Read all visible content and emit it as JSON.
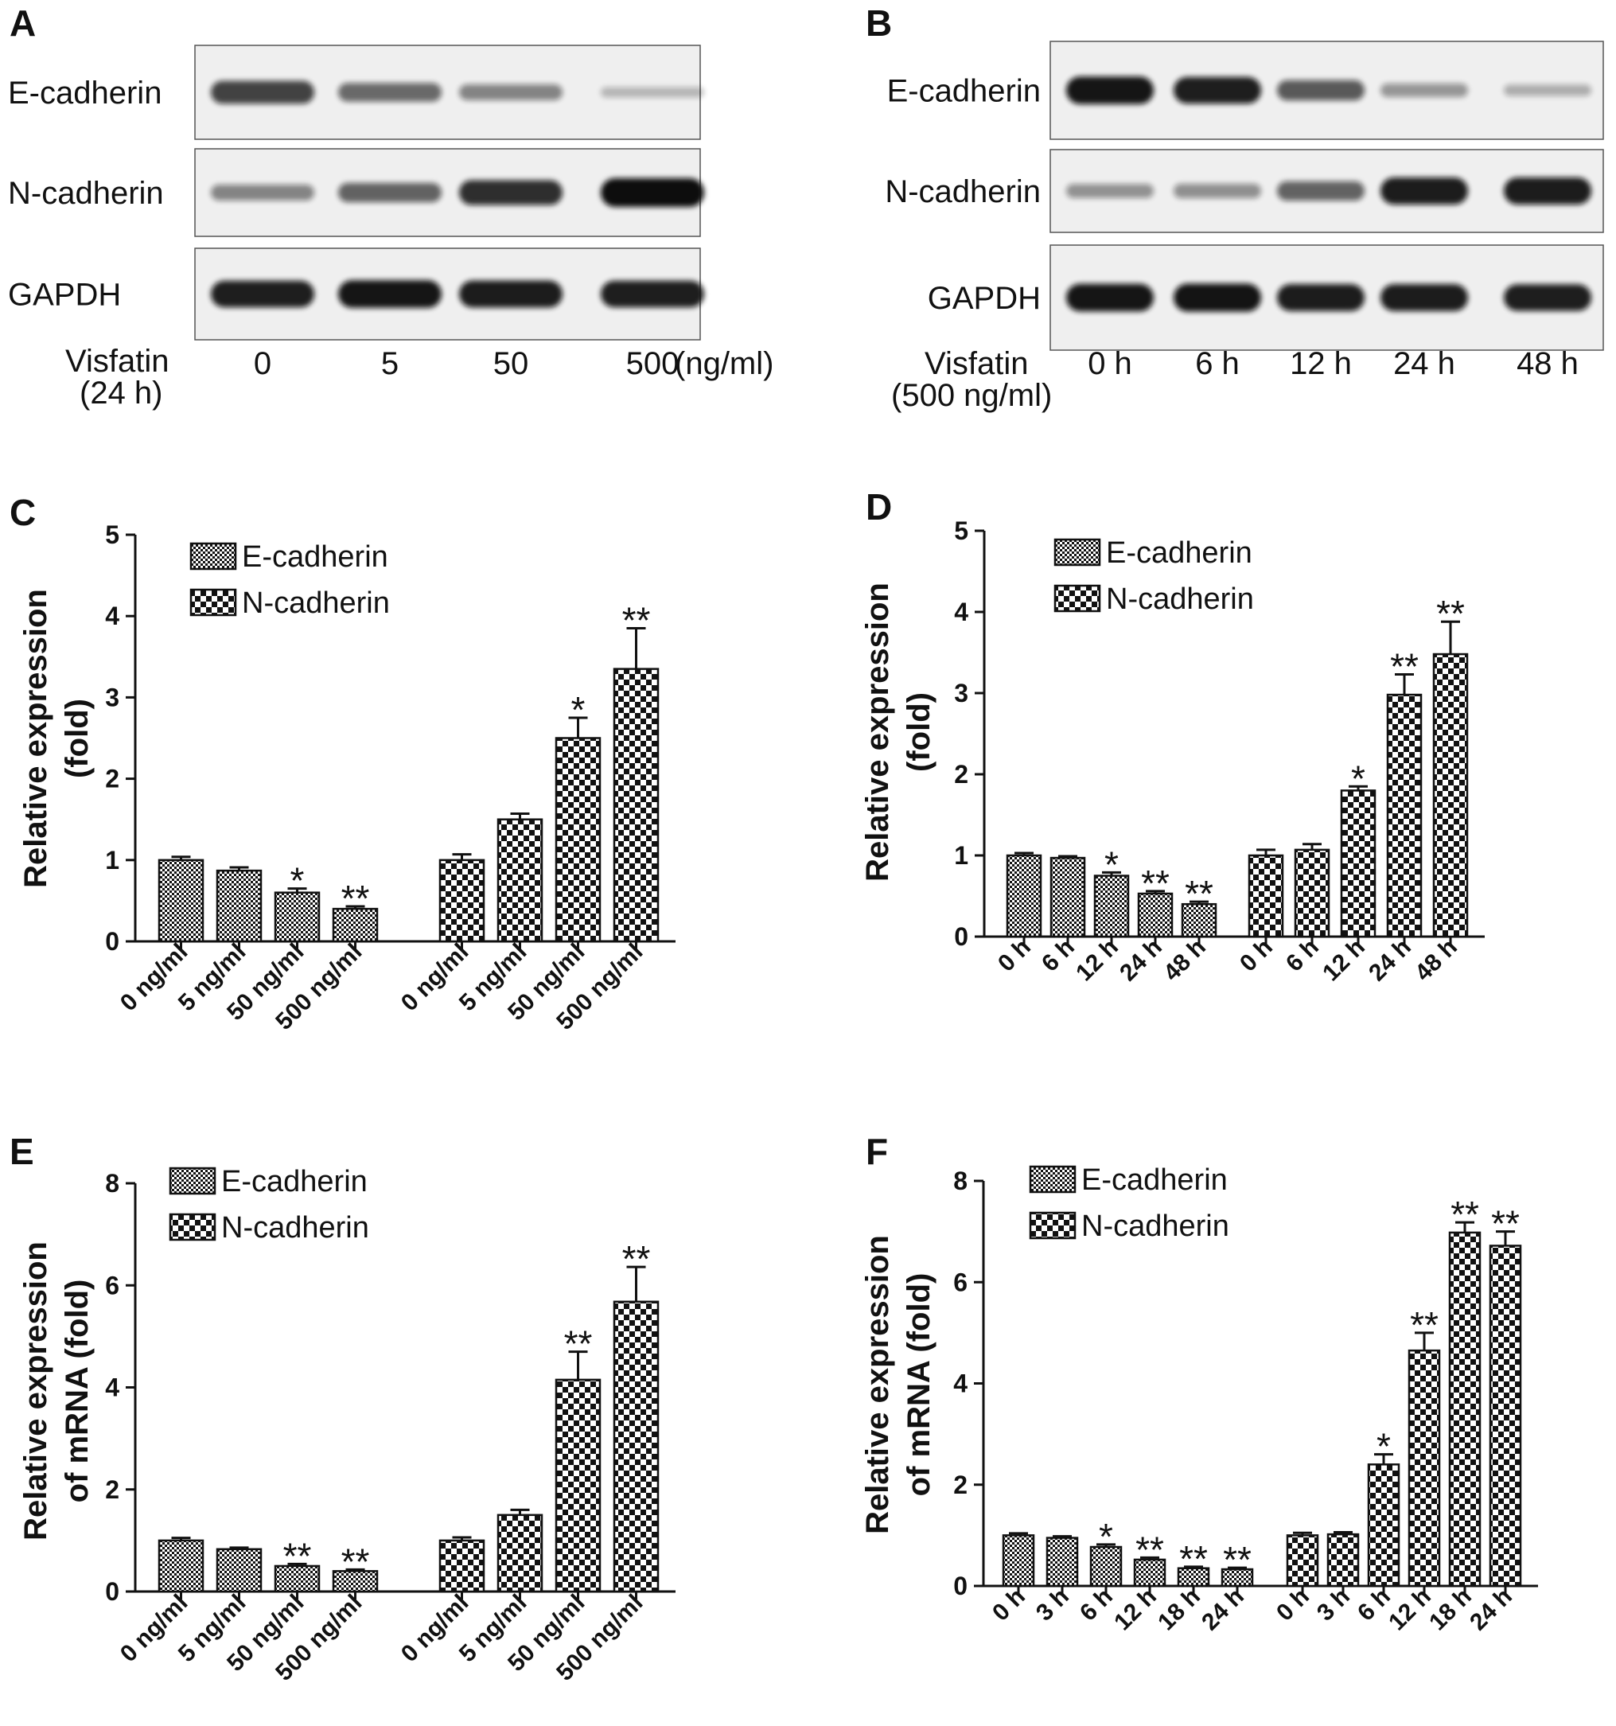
{
  "colors": {
    "ink": "#111111",
    "blot_bg": "#efefef",
    "band": "#0c0c0c",
    "paper": "#ffffff"
  },
  "blots": [
    {
      "letter": "A",
      "rows": [
        {
          "label": "E-cadherin",
          "intensity": [
            0.72,
            0.52,
            0.38,
            0.12
          ]
        },
        {
          "label": "N-cadherin",
          "intensity": [
            0.38,
            0.55,
            0.82,
            1.0
          ]
        },
        {
          "label": "GAPDH",
          "intensity": [
            0.9,
            0.95,
            0.92,
            0.9
          ]
        }
      ],
      "treatment": "Visfatin",
      "condition": "(24 h)",
      "lanes": [
        "0",
        "5",
        "50",
        "500"
      ],
      "unit": "(ng/ml)"
    },
    {
      "letter": "B",
      "rows": [
        {
          "label": "E-cadherin",
          "intensity": [
            0.95,
            0.9,
            0.6,
            0.28,
            0.16
          ]
        },
        {
          "label": "N-cadherin",
          "intensity": [
            0.3,
            0.32,
            0.55,
            0.92,
            0.92
          ]
        },
        {
          "label": "GAPDH",
          "intensity": [
            0.95,
            0.97,
            0.92,
            0.92,
            0.9
          ]
        }
      ],
      "treatment": "Visfatin",
      "condition": "(500 ng/ml)",
      "lanes": [
        "0 h",
        "6 h",
        "12 h",
        "24 h",
        "48 h"
      ],
      "unit": ""
    }
  ],
  "chart_data": [
    {
      "letter": "C",
      "type": "bar",
      "ylabel": [
        "Relative expression",
        "(fold)"
      ],
      "ylim": [
        0,
        5
      ],
      "yticks": [
        "0",
        "1",
        "2",
        "3",
        "4",
        "5"
      ],
      "legend": [
        "E-cadherin",
        "N-cadherin"
      ],
      "legend_position": "top-left",
      "series": [
        {
          "name": "E-cadherin",
          "categories": [
            "0 ng/ml",
            "5 ng/ml",
            "50 ng/ml",
            "500 ng/ml"
          ],
          "values": [
            1.0,
            0.87,
            0.6,
            0.4
          ],
          "errors": [
            0.04,
            0.04,
            0.05,
            0.03
          ],
          "sig": [
            "",
            "",
            "*",
            "**"
          ]
        },
        {
          "name": "N-cadherin",
          "categories": [
            "0 ng/ml",
            "5 ng/ml",
            "50 ng/ml",
            "500 ng/ml"
          ],
          "values": [
            1.0,
            1.5,
            2.5,
            3.35
          ],
          "errors": [
            0.07,
            0.07,
            0.25,
            0.5
          ],
          "sig": [
            "",
            "",
            "*",
            "**"
          ]
        }
      ]
    },
    {
      "letter": "D",
      "type": "bar",
      "ylabel": [
        "Relative expression",
        "(fold)"
      ],
      "ylim": [
        0,
        5
      ],
      "yticks": [
        "0",
        "1",
        "2",
        "3",
        "4",
        "5"
      ],
      "legend": [
        "E-cadherin",
        "N-cadherin"
      ],
      "legend_position": "top-left",
      "series": [
        {
          "name": "E-cadherin",
          "categories": [
            "0 h",
            "6 h",
            "12 h",
            "24 h",
            "48 h"
          ],
          "values": [
            1.0,
            0.97,
            0.75,
            0.53,
            0.4
          ],
          "errors": [
            0.03,
            0.02,
            0.04,
            0.03,
            0.03
          ],
          "sig": [
            "",
            "",
            "*",
            "**",
            "**"
          ]
        },
        {
          "name": "N-cadherin",
          "categories": [
            "0 h",
            "6 h",
            "12 h",
            "24 h",
            "48 h"
          ],
          "values": [
            1.0,
            1.07,
            1.8,
            2.98,
            3.48
          ],
          "errors": [
            0.07,
            0.07,
            0.05,
            0.25,
            0.4
          ],
          "sig": [
            "",
            "",
            "*",
            "**",
            "**"
          ]
        }
      ]
    },
    {
      "letter": "E",
      "type": "bar",
      "ylabel": [
        "Relative expression",
        "of mRNA (fold)"
      ],
      "ylim": [
        0,
        8
      ],
      "yticks": [
        "0",
        "2",
        "4",
        "6",
        "8"
      ],
      "legend": [
        "E-cadherin",
        "N-cadherin"
      ],
      "legend_position": "top-left",
      "series": [
        {
          "name": "E-cadherin",
          "categories": [
            "0 ng/ml",
            "5 ng/ml",
            "50 ng/ml",
            "500 ng/ml"
          ],
          "values": [
            1.0,
            0.83,
            0.5,
            0.4
          ],
          "errors": [
            0.05,
            0.03,
            0.04,
            0.03
          ],
          "sig": [
            "",
            "",
            "**",
            "**"
          ]
        },
        {
          "name": "N-cadherin",
          "categories": [
            "0 ng/ml",
            "5 ng/ml",
            "50 ng/ml",
            "500 ng/ml"
          ],
          "values": [
            1.0,
            1.5,
            4.15,
            5.68
          ],
          "errors": [
            0.06,
            0.1,
            0.55,
            0.68
          ],
          "sig": [
            "",
            "",
            "**",
            "**"
          ]
        }
      ]
    },
    {
      "letter": "F",
      "type": "bar",
      "ylabel": [
        "Relative expression",
        "of mRNA (fold)"
      ],
      "ylim": [
        0,
        8
      ],
      "yticks": [
        "0",
        "2",
        "4",
        "6",
        "8"
      ],
      "legend": [
        "E-cadherin",
        "N-cadherin"
      ],
      "legend_position": "top-left",
      "series": [
        {
          "name": "E-cadherin",
          "categories": [
            "0 h",
            "3 h",
            "6 h",
            "12 h",
            "18 h",
            "24 h"
          ],
          "values": [
            1.0,
            0.95,
            0.77,
            0.52,
            0.35,
            0.33
          ],
          "errors": [
            0.04,
            0.03,
            0.05,
            0.04,
            0.03,
            0.03
          ],
          "sig": [
            "",
            "",
            "*",
            "**",
            "**",
            "**"
          ]
        },
        {
          "name": "N-cadherin",
          "categories": [
            "0 h",
            "3 h",
            "6 h",
            "12 h",
            "18 h",
            "24 h"
          ],
          "values": [
            1.0,
            1.02,
            2.4,
            4.65,
            6.98,
            6.72
          ],
          "errors": [
            0.05,
            0.04,
            0.2,
            0.35,
            0.2,
            0.28
          ],
          "sig": [
            "",
            "",
            "*",
            "**",
            "**",
            "**"
          ]
        }
      ]
    }
  ]
}
